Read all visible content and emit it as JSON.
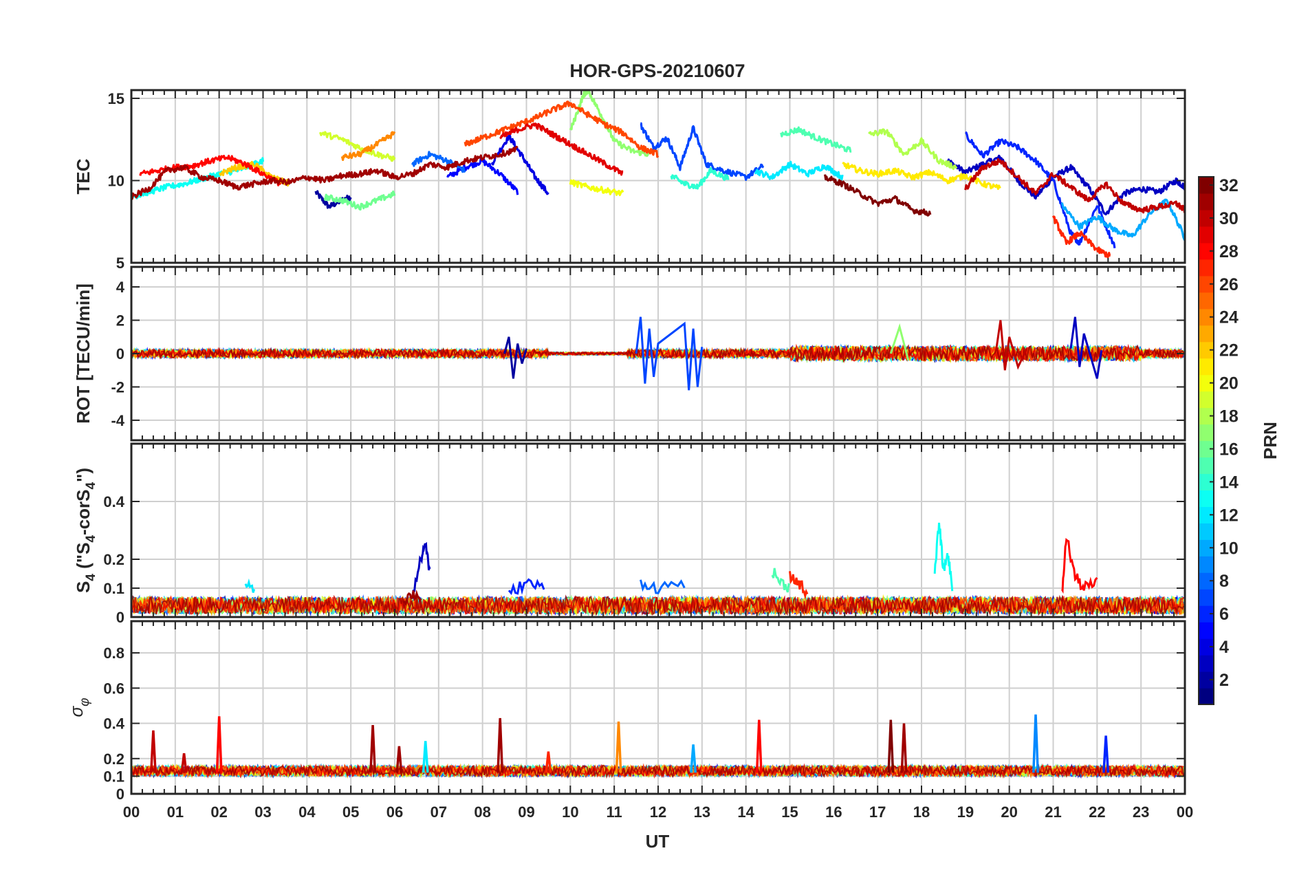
{
  "chart_data": [
    {
      "type": "line",
      "panel": "tec",
      "title": "HOR-GPS-20210607",
      "ylabel": "TEC",
      "ylim": [
        5,
        15.5
      ],
      "yticks": [
        "5",
        "10",
        "15"
      ],
      "xlim": [
        0,
        24
      ],
      "grid": true,
      "series": [
        {
          "name": "PRN 2",
          "prn": 2,
          "x": [
            4.2,
            4.5,
            4.8,
            5.0
          ],
          "y": [
            9.3,
            8.4,
            8.8,
            9.0
          ]
        },
        {
          "name": "PRN 3",
          "prn": 3,
          "x": [
            18.6,
            19.0,
            19.4,
            19.8,
            20.2,
            20.6,
            21.0,
            21.4,
            21.8,
            22.2,
            22.6,
            23.0,
            23.4,
            23.8,
            24.0
          ],
          "y": [
            11.2,
            10.5,
            11.0,
            11.4,
            10.0,
            9.0,
            10.2,
            10.8,
            9.6,
            8.0,
            9.2,
            9.5,
            9.3,
            10.0,
            9.6
          ]
        },
        {
          "name": "PRN 4",
          "prn": 4,
          "x": [
            8.2,
            8.6,
            8.9,
            9.2,
            9.5
          ],
          "y": [
            11.0,
            12.7,
            11.5,
            10.2,
            9.2
          ]
        },
        {
          "name": "PRN 5",
          "prn": 5,
          "x": [
            7.2,
            7.6,
            8.0,
            8.4,
            8.8
          ],
          "y": [
            10.2,
            10.8,
            11.2,
            10.4,
            9.3
          ]
        },
        {
          "name": "PRN 6",
          "prn": 6,
          "x": [
            19.0,
            19.4,
            19.8,
            20.2,
            20.6,
            21.0,
            21.4,
            21.6,
            22.0,
            22.4
          ],
          "y": [
            12.8,
            11.5,
            12.4,
            12.0,
            11.2,
            10.0,
            6.8,
            6.2,
            8.5,
            6.0
          ]
        },
        {
          "name": "PRN 7",
          "prn": 7,
          "x": [
            11.6,
            11.9,
            12.2,
            12.5,
            12.8,
            13.1,
            13.5,
            14.0,
            14.4
          ],
          "y": [
            13.4,
            12.0,
            12.6,
            10.8,
            13.2,
            11.0,
            10.6,
            10.2,
            10.9
          ]
        },
        {
          "name": "PRN 8",
          "prn": 8,
          "x": [
            6.4,
            6.8,
            7.2,
            7.6
          ],
          "y": [
            11.0,
            11.6,
            11.2,
            10.6
          ]
        },
        {
          "name": "PRN 10",
          "prn": 10,
          "x": [
            21.2,
            21.6,
            22.0,
            22.4,
            22.8,
            23.2,
            23.6,
            24.0
          ],
          "y": [
            8.5,
            7.2,
            7.8,
            7.0,
            6.6,
            8.0,
            8.8,
            6.5
          ]
        },
        {
          "name": "PRN 12",
          "prn": 12,
          "x": [
            14.2,
            14.6,
            15.0,
            15.4,
            15.8,
            16.2
          ],
          "y": [
            10.6,
            10.2,
            11.0,
            10.4,
            10.9,
            10.2
          ]
        },
        {
          "name": "PRN 13",
          "prn": 13,
          "x": [
            0.0,
            0.4,
            0.8,
            1.2,
            1.6,
            2.0,
            2.4,
            2.8,
            3.0
          ],
          "y": [
            9.0,
            9.3,
            9.6,
            9.8,
            10.1,
            10.4,
            10.6,
            11.0,
            11.2
          ]
        },
        {
          "name": "PRN 14",
          "prn": 14,
          "x": [
            12.3,
            12.6,
            12.9,
            13.2,
            13.6
          ],
          "y": [
            10.3,
            9.8,
            9.6,
            10.6,
            10.1
          ]
        },
        {
          "name": "PRN 15",
          "prn": 15,
          "x": [
            14.8,
            15.2,
            15.6,
            16.0,
            16.4
          ],
          "y": [
            12.8,
            13.1,
            12.6,
            12.2,
            11.8
          ]
        },
        {
          "name": "PRN 16",
          "prn": 16,
          "x": [
            4.4,
            4.8,
            5.2,
            5.6,
            6.0
          ],
          "y": [
            9.0,
            8.8,
            8.4,
            8.8,
            9.2
          ]
        },
        {
          "name": "PRN 17",
          "prn": 17,
          "x": [
            10.0,
            10.3,
            10.4,
            10.7,
            11.0,
            11.4,
            11.8
          ],
          "y": [
            13.0,
            15.2,
            15.5,
            14.0,
            12.4,
            11.8,
            11.6
          ]
        },
        {
          "name": "PRN 18",
          "prn": 18,
          "x": [
            16.8,
            17.2,
            17.6,
            18.0,
            18.4,
            18.8
          ],
          "y": [
            12.8,
            13.0,
            11.6,
            12.4,
            11.2,
            10.8
          ]
        },
        {
          "name": "PRN 19",
          "prn": 19,
          "x": [
            4.3,
            4.8,
            5.2,
            5.6,
            6.0
          ],
          "y": [
            12.9,
            12.5,
            12.0,
            11.6,
            11.3
          ]
        },
        {
          "name": "PRN 20",
          "prn": 20,
          "x": [
            10.0,
            10.4,
            10.8,
            11.2
          ],
          "y": [
            9.9,
            9.6,
            9.4,
            9.2
          ]
        },
        {
          "name": "PRN 21",
          "prn": 21,
          "x": [
            16.2,
            16.6,
            17.0,
            17.4,
            17.8,
            18.2,
            18.6,
            19.0,
            19.4,
            19.8
          ],
          "y": [
            11.0,
            10.6,
            10.4,
            10.6,
            10.2,
            10.5,
            10.0,
            10.3,
            9.8,
            9.5
          ]
        },
        {
          "name": "PRN 22",
          "prn": 22,
          "x": [
            2.0,
            2.4,
            2.8,
            3.2,
            3.6
          ],
          "y": [
            10.4,
            10.8,
            11.0,
            10.2,
            9.8
          ]
        },
        {
          "name": "PRN 24",
          "prn": 24,
          "x": [
            4.8,
            5.2,
            5.6,
            6.0
          ],
          "y": [
            11.4,
            11.6,
            12.2,
            12.9
          ]
        },
        {
          "name": "PRN 26",
          "prn": 26,
          "x": [
            7.6,
            8.0,
            8.4,
            8.8,
            9.2,
            9.6,
            10.0,
            10.4,
            10.8,
            11.2,
            11.6,
            12.0
          ],
          "y": [
            12.2,
            12.6,
            13.0,
            13.4,
            13.8,
            14.3,
            14.7,
            14.0,
            13.4,
            12.9,
            12.0,
            11.6
          ]
        },
        {
          "name": "PRN 27",
          "prn": 27,
          "x": [
            21.0,
            21.3,
            21.6,
            22.0,
            22.3
          ],
          "y": [
            7.8,
            6.2,
            6.8,
            5.8,
            5.4
          ]
        },
        {
          "name": "PRN 28",
          "prn": 28,
          "x": [
            0.2,
            0.6,
            1.0,
            1.4,
            1.8,
            2.2,
            2.6,
            3.0,
            3.4
          ],
          "y": [
            10.4,
            10.6,
            10.8,
            10.9,
            11.2,
            11.4,
            11.0,
            10.4,
            9.8
          ]
        },
        {
          "name": "PRN 29",
          "prn": 29,
          "x": [
            8.4,
            8.8,
            9.2,
            9.6,
            10.0,
            10.4,
            10.8,
            11.2
          ],
          "y": [
            12.6,
            13.1,
            13.4,
            12.8,
            12.2,
            11.6,
            11.0,
            10.4
          ]
        },
        {
          "name": "PRN 30",
          "prn": 30,
          "x": [
            19.0,
            19.4,
            19.8,
            20.2,
            20.6,
            21.0,
            21.4,
            21.8,
            22.2,
            22.6,
            23.0,
            23.4,
            23.8,
            24.0
          ],
          "y": [
            9.5,
            10.8,
            11.2,
            10.2,
            9.2,
            10.4,
            9.6,
            8.8,
            9.8,
            8.6,
            8.2,
            8.4,
            8.6,
            8.2
          ]
        },
        {
          "name": "PRN 31",
          "prn": 31,
          "x": [
            0.0,
            0.4,
            0.8,
            1.2,
            1.6,
            2.0,
            2.4,
            2.8,
            3.2,
            3.6,
            4.0,
            4.4,
            4.8,
            5.2,
            5.6,
            6.0,
            6.4,
            6.8,
            7.2,
            7.6,
            8.0,
            8.4,
            8.8
          ],
          "y": [
            9.0,
            9.5,
            10.6,
            10.8,
            10.2,
            10.0,
            9.6,
            9.8,
            10.0,
            9.9,
            10.2,
            10.0,
            10.3,
            10.4,
            10.6,
            10.2,
            10.4,
            11.0,
            10.8,
            11.2,
            11.4,
            11.6,
            11.9
          ]
        },
        {
          "name": "PRN 32",
          "prn": 32,
          "x": [
            15.8,
            16.2,
            16.6,
            17.0,
            17.4,
            17.8,
            18.2
          ],
          "y": [
            10.2,
            9.8,
            9.2,
            8.6,
            8.9,
            8.2,
            8.0
          ]
        }
      ]
    },
    {
      "type": "line",
      "panel": "rot",
      "ylabel": "ROT [TECU/min]",
      "ylim": [
        -5.2,
        5.2
      ],
      "yticks": [
        "-4",
        "-2",
        "0",
        "2",
        "4"
      ],
      "xlim": [
        0,
        24
      ],
      "grid": true,
      "series": [
        {
          "name": "PRN 2",
          "prn": 2,
          "x": [
            8.5,
            8.6,
            8.7,
            8.8,
            8.9,
            9.0
          ],
          "y": [
            0.0,
            1.0,
            -1.5,
            0.6,
            -0.6,
            0.3
          ]
        },
        {
          "name": "PRN 7",
          "prn": 7,
          "x": [
            11.5,
            11.6,
            11.7,
            11.8,
            11.9,
            12.0,
            12.6,
            12.7,
            12.8,
            12.9,
            13.0
          ],
          "y": [
            0.0,
            2.2,
            -1.8,
            1.5,
            -1.4,
            0.6,
            1.8,
            -2.2,
            1.5,
            -2.0,
            0.4
          ]
        },
        {
          "name": "PRN 3",
          "prn": 3,
          "x": [
            21.4,
            21.5,
            21.6,
            21.7,
            22.0,
            22.1
          ],
          "y": [
            0.3,
            2.2,
            -0.8,
            1.2,
            -1.5,
            0.2
          ]
        },
        {
          "name": "PRN 30",
          "prn": 30,
          "x": [
            19.7,
            19.8,
            19.9,
            20.0,
            20.2,
            20.4
          ],
          "y": [
            0.2,
            2.0,
            -1.0,
            1.0,
            -0.8,
            0.3
          ]
        },
        {
          "name": "PRN 17",
          "prn": 17,
          "x": [
            17.3,
            17.5,
            17.7
          ],
          "y": [
            0.0,
            1.6,
            -0.4
          ]
        }
      ]
    },
    {
      "type": "line",
      "panel": "s4",
      "ylabel": "S4 (\"S4-corS4\")",
      "ylabel_main": "S",
      "ylabel_sub": "4",
      "ylabel_rest1": " (\"S",
      "ylabel_sub2": "4",
      "ylabel_rest2": "-corS",
      "ylabel_sub3": "4",
      "ylabel_rest3": "\")",
      "ylim": [
        0,
        0.6
      ],
      "yticks": [
        "0",
        "0.1",
        "0.2",
        "0.4"
      ],
      "xlim": [
        0,
        24
      ],
      "grid": true,
      "series": [
        {
          "name": "PRN 3",
          "prn": 3,
          "x": [
            6.4,
            6.6,
            6.7,
            6.8
          ],
          "y": [
            0.08,
            0.2,
            0.26,
            0.15
          ]
        },
        {
          "name": "PRN 6",
          "prn": 6,
          "x": [
            8.6,
            9.0,
            9.4
          ],
          "y": [
            0.08,
            0.12,
            0.1
          ]
        },
        {
          "name": "PRN 8",
          "prn": 8,
          "x": [
            11.6,
            12.0,
            12.6
          ],
          "y": [
            0.12,
            0.1,
            0.12
          ]
        },
        {
          "name": "PRN 13",
          "prn": 13,
          "x": [
            18.3,
            18.4,
            18.5,
            18.6,
            18.7
          ],
          "y": [
            0.14,
            0.33,
            0.16,
            0.22,
            0.1
          ]
        },
        {
          "name": "PRN 15",
          "prn": 15,
          "x": [
            14.6,
            14.8,
            15.0
          ],
          "y": [
            0.16,
            0.12,
            0.1
          ]
        },
        {
          "name": "PRN 12",
          "prn": 12,
          "x": [
            2.6,
            2.8
          ],
          "y": [
            0.13,
            0.08
          ]
        },
        {
          "name": "PRN 28",
          "prn": 28,
          "x": [
            21.2,
            21.3,
            21.5,
            21.7,
            22.0
          ],
          "y": [
            0.08,
            0.28,
            0.14,
            0.1,
            0.12
          ]
        },
        {
          "name": "PRN 27",
          "prn": 27,
          "x": [
            15.0,
            15.2,
            15.4
          ],
          "y": [
            0.14,
            0.12,
            0.08
          ]
        },
        {
          "name": "PRN 31",
          "prn": 31,
          "x": [
            6.2,
            6.4,
            6.6
          ],
          "y": [
            0.06,
            0.08,
            0.07
          ]
        }
      ]
    },
    {
      "type": "line",
      "panel": "sigma",
      "ylabel": "σφ",
      "ylabel_main": "σ",
      "ylabel_sub": "φ",
      "ylim": [
        0,
        0.98
      ],
      "yticks": [
        "0",
        "0.1",
        "0.2",
        "0.4",
        "0.6",
        "0.8"
      ],
      "xlim": [
        0,
        24
      ],
      "xlabel": "UT",
      "xticks": [
        "00",
        "01",
        "02",
        "03",
        "04",
        "05",
        "06",
        "07",
        "08",
        "09",
        "10",
        "11",
        "12",
        "13",
        "14",
        "15",
        "16",
        "17",
        "18",
        "19",
        "20",
        "21",
        "22",
        "23",
        "00"
      ],
      "grid": true,
      "spikes": [
        {
          "prn": 30,
          "x": 0.5,
          "y": 0.36
        },
        {
          "prn": 30,
          "x": 1.2,
          "y": 0.23
        },
        {
          "prn": 28,
          "x": 2.0,
          "y": 0.44
        },
        {
          "prn": 31,
          "x": 5.5,
          "y": 0.39
        },
        {
          "prn": 31,
          "x": 6.1,
          "y": 0.27
        },
        {
          "prn": 12,
          "x": 6.7,
          "y": 0.3
        },
        {
          "prn": 31,
          "x": 8.4,
          "y": 0.43
        },
        {
          "prn": 27,
          "x": 9.5,
          "y": 0.24
        },
        {
          "prn": 24,
          "x": 11.1,
          "y": 0.41
        },
        {
          "prn": 10,
          "x": 12.8,
          "y": 0.28
        },
        {
          "prn": 28,
          "x": 14.3,
          "y": 0.42
        },
        {
          "prn": 32,
          "x": 17.3,
          "y": 0.42
        },
        {
          "prn": 31,
          "x": 17.6,
          "y": 0.4
        },
        {
          "prn": 9,
          "x": 20.6,
          "y": 0.45
        },
        {
          "prn": 6,
          "x": 22.2,
          "y": 0.33
        }
      ]
    }
  ],
  "colorbar": {
    "label": "PRN",
    "min": 1,
    "max": 32,
    "ticks": [
      "2",
      "4",
      "6",
      "8",
      "10",
      "12",
      "14",
      "16",
      "18",
      "20",
      "22",
      "24",
      "26",
      "28",
      "30",
      "32"
    ]
  }
}
